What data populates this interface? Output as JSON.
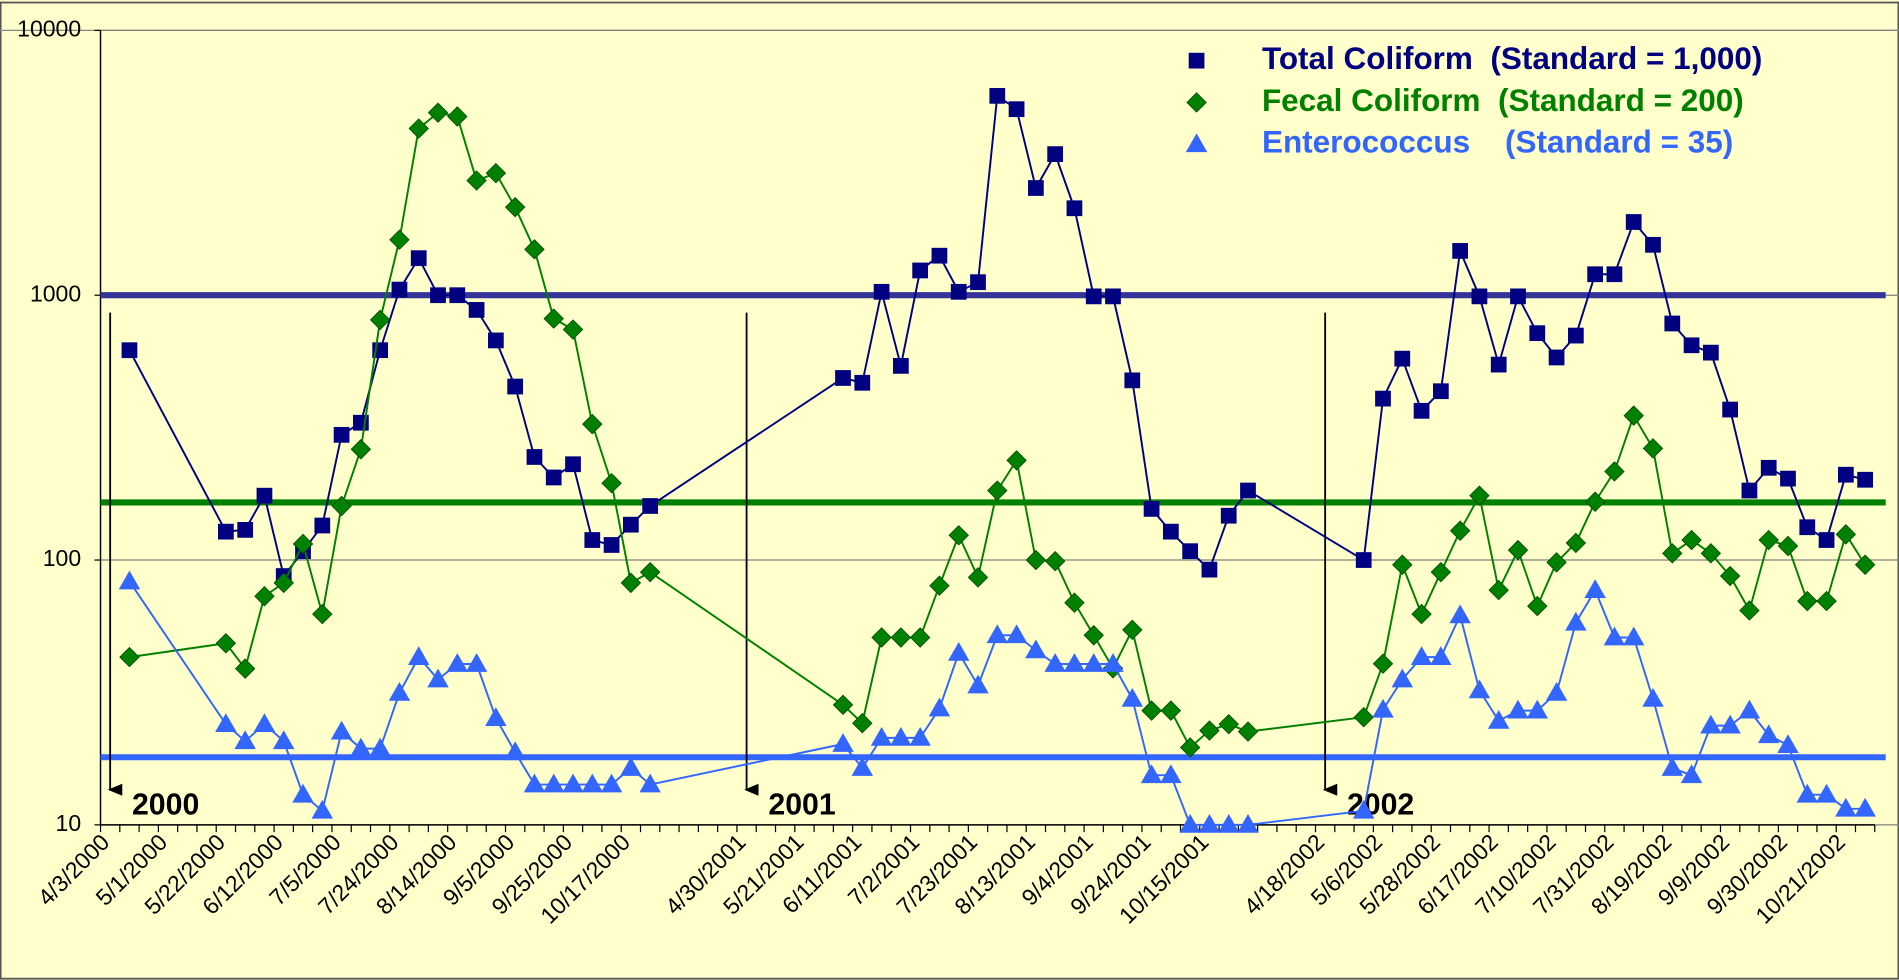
{
  "chart_data": {
    "type": "line",
    "log_y": true,
    "grid": true,
    "legend_position": "top-right",
    "ylim": [
      10,
      10000
    ],
    "yticks": [
      10,
      100,
      1000,
      10000
    ],
    "categories": [
      "4/3/2000",
      null,
      null,
      "5/1/2000",
      null,
      null,
      "5/22/2000",
      null,
      null,
      "6/12/2000",
      null,
      null,
      "7/5/2000",
      null,
      null,
      "7/24/2000",
      null,
      null,
      "8/14/2000",
      null,
      null,
      "9/5/2000",
      null,
      null,
      "9/25/2000",
      null,
      null,
      "10/17/2000",
      null,
      null,
      null,
      null,
      null,
      "4/30/2001",
      null,
      null,
      "5/21/2001",
      null,
      null,
      "6/11/2001",
      null,
      null,
      "7/2/2001",
      null,
      null,
      "7/23/2001",
      null,
      null,
      "8/13/2001",
      null,
      null,
      "9/4/2001",
      null,
      null,
      "9/24/2001",
      null,
      null,
      "10/15/2001",
      null,
      null,
      null,
      null,
      null,
      "4/18/2002",
      null,
      null,
      "5/6/2002",
      null,
      null,
      "5/28/2002",
      null,
      null,
      "6/17/2002",
      null,
      null,
      "7/10/2002",
      null,
      null,
      "7/31/2002",
      null,
      null,
      "8/19/2002",
      null,
      null,
      "9/9/2002",
      null,
      null,
      "9/30/2002",
      null,
      null,
      "10/21/2002",
      null
    ],
    "series": [
      {
        "name": "Total Coliform  (Standard = 1,000)",
        "color": "#000080",
        "marker": "square",
        "values": [
          null,
          620,
          null,
          null,
          null,
          null,
          128,
          130,
          175,
          87,
          108,
          135,
          297,
          330,
          620,
          1050,
          1380,
          1000,
          1000,
          880,
          675,
          452,
          245,
          205,
          230,
          119,
          114,
          136,
          160,
          null,
          null,
          null,
          null,
          null,
          null,
          null,
          null,
          null,
          487,
          467,
          1030,
          541,
          1240,
          1410,
          1030,
          1120,
          5660,
          5040,
          2540,
          3410,
          2130,
          990,
          990,
          477,
          156,
          128,
          108,
          92,
          147,
          183,
          null,
          null,
          null,
          null,
          null,
          100,
          407,
          576,
          366,
          434,
          1470,
          990,
          547,
          990,
          719,
          582,
          704,
          1200,
          1200,
          1890,
          1550,
          782,
          647,
          607,
          370,
          183,
          223,
          203,
          133,
          119,
          210,
          201
        ]
      },
      {
        "name": "Fecal Coliform  (Standard = 200)",
        "color": "#008000",
        "marker": "diamond",
        "values": [
          null,
          43,
          null,
          null,
          null,
          null,
          48.5,
          38.9,
          73,
          82,
          115,
          62.5,
          160,
          262,
          807,
          1620,
          4260,
          4890,
          4730,
          2710,
          2890,
          2150,
          1490,
          816,
          742,
          326,
          195,
          82,
          90,
          null,
          null,
          null,
          null,
          null,
          null,
          null,
          null,
          null,
          28.4,
          24.2,
          51,
          51,
          51,
          80,
          124,
          86,
          183,
          238,
          100,
          99,
          69,
          52,
          39,
          54.5,
          27,
          27,
          19.6,
          22.7,
          24,
          22.5,
          null,
          null,
          null,
          null,
          null,
          25.5,
          40.6,
          96,
          62.5,
          90,
          129,
          175,
          77,
          109,
          67,
          98,
          116,
          166,
          216,
          351,
          264,
          106,
          119,
          106,
          87,
          64.5,
          119,
          113,
          70,
          70,
          125,
          96
        ]
      },
      {
        "name": "Enterococcus    (Standard = 35)",
        "color": "#3366ff",
        "marker": "triangle",
        "values": [
          null,
          83,
          null,
          null,
          null,
          null,
          24,
          20.7,
          24,
          20.7,
          13,
          11.3,
          22.5,
          19.4,
          19.4,
          31.5,
          43,
          35.4,
          40.5,
          40.5,
          25.3,
          18.8,
          14.2,
          14.2,
          14.2,
          14.2,
          14.2,
          16.4,
          14.2,
          null,
          null,
          null,
          null,
          null,
          null,
          null,
          null,
          null,
          20.2,
          16.4,
          21.3,
          21.3,
          21.3,
          27.5,
          44.6,
          33.6,
          52,
          52,
          45.6,
          40.5,
          40.5,
          40.5,
          40.5,
          29.9,
          15.4,
          15.4,
          10,
          10,
          10,
          10,
          null,
          null,
          null,
          null,
          null,
          11.3,
          27.2,
          35.4,
          43,
          43,
          61.8,
          32.2,
          24.7,
          27,
          27,
          31.5,
          58,
          77,
          51,
          51,
          29.9,
          16.4,
          15.4,
          23.7,
          23.7,
          27,
          21.8,
          20,
          13,
          13,
          11.5,
          11.5
        ]
      }
    ],
    "reference_lines": [
      {
        "value": 1000,
        "color": "#333399"
      },
      {
        "value": 165,
        "color": "#008000"
      },
      {
        "value": 18,
        "color": "#3366ff"
      }
    ],
    "annotations": [
      {
        "text": "2000",
        "x": "4/3/2000"
      },
      {
        "text": "2001",
        "x": "4/30/2001"
      },
      {
        "text": "2002",
        "x": "4/18/2002"
      }
    ]
  }
}
